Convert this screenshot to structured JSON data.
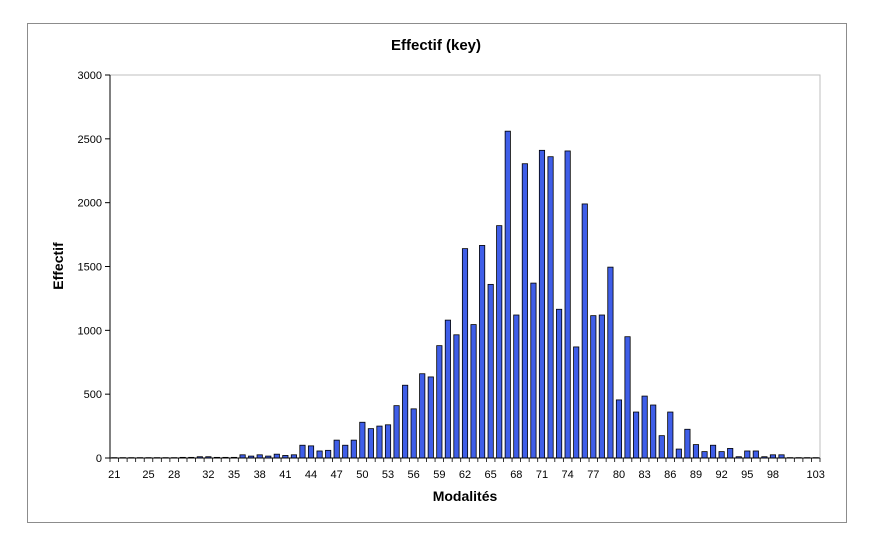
{
  "chart_data": {
    "type": "bar",
    "title": "Effectif (key)",
    "xlabel": "Modalités",
    "ylabel": "Effectif",
    "ylim": [
      0,
      3000
    ],
    "yticks": [
      0,
      500,
      1000,
      1500,
      2000,
      2500,
      3000
    ],
    "xtick_labels": [
      "21",
      "25",
      "28",
      "32",
      "35",
      "38",
      "41",
      "44",
      "47",
      "50",
      "53",
      "56",
      "59",
      "62",
      "65",
      "68",
      "71",
      "74",
      "77",
      "80",
      "83",
      "86",
      "89",
      "92",
      "95",
      "98",
      "103"
    ],
    "grid": false,
    "legend": "none",
    "bar_color": "#3f5ee8",
    "categories": [
      21,
      22,
      23,
      24,
      25,
      26,
      27,
      28,
      29,
      30,
      31,
      32,
      33,
      34,
      35,
      36,
      37,
      38,
      39,
      40,
      41,
      42,
      43,
      44,
      45,
      46,
      47,
      48,
      49,
      50,
      51,
      52,
      53,
      54,
      55,
      56,
      57,
      58,
      59,
      60,
      61,
      62,
      63,
      64,
      65,
      66,
      67,
      68,
      69,
      70,
      71,
      72,
      73,
      74,
      75,
      76,
      77,
      78,
      79,
      80,
      81,
      82,
      83,
      84,
      85,
      86,
      87,
      88,
      89,
      90,
      91,
      92,
      93,
      94,
      95,
      96,
      97,
      98,
      99,
      100,
      101,
      102,
      103
    ],
    "values": [
      3,
      3,
      3,
      3,
      3,
      3,
      3,
      3,
      5,
      5,
      10,
      10,
      5,
      5,
      5,
      25,
      15,
      25,
      15,
      30,
      20,
      25,
      100,
      95,
      55,
      60,
      140,
      100,
      140,
      280,
      230,
      250,
      260,
      410,
      570,
      385,
      660,
      635,
      880,
      1080,
      965,
      1640,
      1045,
      1665,
      1360,
      1820,
      2560,
      1120,
      2305,
      1370,
      2410,
      2360,
      1165,
      2405,
      870,
      1990,
      1115,
      1120,
      1495,
      455,
      950,
      360,
      485,
      415,
      175,
      360,
      70,
      225,
      105,
      50,
      100,
      50,
      75,
      10,
      55,
      55,
      10,
      25,
      25,
      3,
      3,
      3,
      3
    ]
  }
}
